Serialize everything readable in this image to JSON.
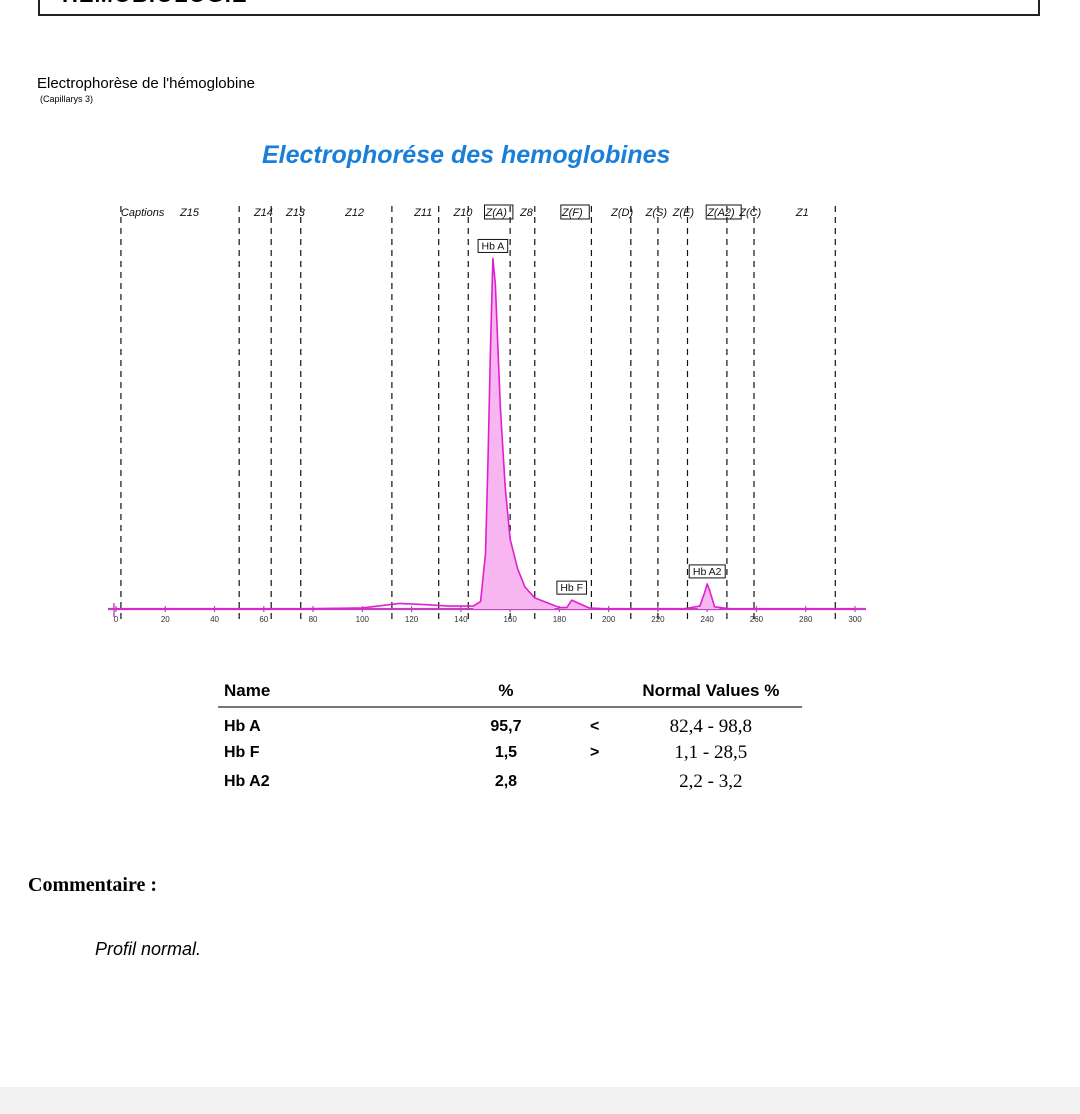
{
  "header": {
    "section_title": "HÉMOBIOLOGIE"
  },
  "exam": {
    "title": "Electrophorèse de l'hémoglobine",
    "subtitle": "(Capillarys 3)"
  },
  "chart_title": "Electrophorése des hemoglobines",
  "chart_data": {
    "type": "line",
    "title": "Electrophorése des hemoglobines",
    "xlabel": "",
    "ylabel": "",
    "xlim": [
      0,
      300
    ],
    "ylim": [
      0,
      100
    ],
    "x_ticks": [
      0,
      20,
      40,
      60,
      80,
      100,
      120,
      140,
      160,
      180,
      200,
      220,
      240,
      260,
      280,
      300
    ],
    "grid": false,
    "zones": [
      {
        "label": "Captions",
        "boundary": 2,
        "label_x": 2,
        "boxed": false
      },
      {
        "label": "Z15",
        "boundary": 50,
        "label_x": 26,
        "boxed": false
      },
      {
        "label": "Z14",
        "boundary": 63,
        "label_x": 56,
        "boxed": false
      },
      {
        "label": "Z13",
        "boundary": 75,
        "label_x": 69,
        "boxed": false
      },
      {
        "label": "Z12",
        "boundary": 112,
        "label_x": 93,
        "boxed": false
      },
      {
        "label": "Z11",
        "boundary": 131,
        "label_x": 121,
        "boxed": false
      },
      {
        "label": "Z10",
        "boundary": 143,
        "label_x": 137,
        "boxed": false
      },
      {
        "label": "Z(A)",
        "boundary": 160,
        "label_x": 150,
        "boxed": true
      },
      {
        "label": "Z8",
        "boundary": 170,
        "label_x": 164,
        "boxed": false
      },
      {
        "label": "Z(F)",
        "boundary": 193,
        "label_x": 181,
        "boxed": true
      },
      {
        "label": "Z(D)",
        "boundary": 209,
        "label_x": 201,
        "boxed": false
      },
      {
        "label": "Z(S)",
        "boundary": 220,
        "label_x": 215,
        "boxed": false
      },
      {
        "label": "Z(E)",
        "boundary": 232,
        "label_x": 226,
        "boxed": false
      },
      {
        "label": "Z(A2)",
        "boundary": 248,
        "label_x": 240,
        "boxed": true
      },
      {
        "label": "Z(C)",
        "boundary": 259,
        "label_x": 253,
        "boxed": false
      },
      {
        "label": "Z1",
        "boundary": 292,
        "label_x": 276,
        "boxed": false
      }
    ],
    "series": [
      {
        "x": [
          0,
          70,
          100,
          115,
          125,
          135,
          145,
          148,
          150,
          151,
          152,
          153,
          154,
          156,
          158,
          160,
          163,
          166,
          170,
          180,
          183,
          185,
          188,
          192,
          200,
          230,
          237,
          239,
          240,
          241,
          243,
          250,
          300
        ],
        "y": [
          0,
          0,
          0.3,
          1.5,
          1.2,
          0.8,
          0.8,
          2,
          15,
          40,
          70,
          95,
          88,
          55,
          33,
          19,
          11,
          6,
          3,
          0.4,
          0.4,
          2.4,
          1.5,
          0.3,
          0,
          0,
          0.8,
          4.5,
          6.8,
          5,
          0.6,
          0,
          0
        ],
        "fill_ranges": [
          [
            145,
            178
          ],
          [
            180,
            195
          ],
          [
            236,
            245
          ]
        ]
      }
    ],
    "peaks": [
      {
        "label": "Hb A",
        "x": 153
      },
      {
        "label": "Hb F",
        "x": 185
      },
      {
        "label": "Hb A2",
        "x": 240
      }
    ]
  },
  "results": {
    "headers": {
      "name": "Name",
      "pct": "%",
      "normal": "Normal Values %"
    },
    "rows": [
      {
        "name": "Hb A",
        "pct": "95,7",
        "cmp": "<",
        "normal": "82,4 - 98,8"
      },
      {
        "name": "Hb F",
        "pct": "1,5",
        "cmp": ">",
        "normal": "1,1 - 28,5"
      },
      {
        "name": "Hb A2",
        "pct": "2,8",
        "cmp": "",
        "normal": "2,2 - 3,2"
      }
    ]
  },
  "comment": {
    "label": "Commentaire :",
    "text": "Profil normal."
  },
  "colors": {
    "title": "#1a7fd9",
    "curve": "#e020d0",
    "fill": "#f7b6ef",
    "axis": "#c040c0"
  }
}
